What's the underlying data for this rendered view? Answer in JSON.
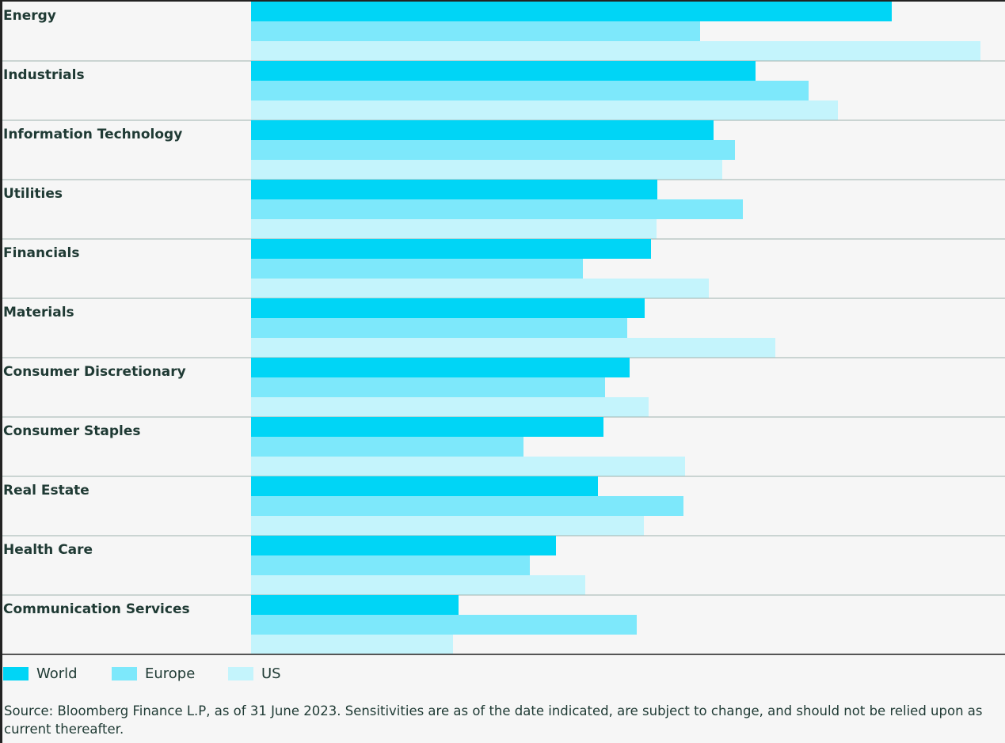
{
  "chart_data": {
    "type": "bar",
    "orientation": "horizontal",
    "categories": [
      "Energy",
      "Industrials",
      "Information Technology",
      "Utilities",
      "Financials",
      "Materials",
      "Consumer Discretionary",
      "Consumer Staples",
      "Real Estate",
      "Health Care",
      "Communication Services"
    ],
    "series": [
      {
        "name": "World",
        "color": "#00d5f6",
        "values": [
          809,
          637,
          584,
          513,
          505,
          497,
          478,
          445,
          438,
          385,
          262
        ]
      },
      {
        "name": "Europe",
        "color": "#7de8fb",
        "values": [
          567,
          704,
          611,
          621,
          419,
          475,
          447,
          344,
          546,
          352,
          487
        ]
      },
      {
        "name": "US",
        "color": "#c4f4fc",
        "values": [
          921,
          741,
          595,
          512,
          578,
          662,
          502,
          548,
          496,
          422,
          255
        ]
      }
    ],
    "xlim": [
      0,
      952
    ],
    "legend": "bottom-left",
    "source": "Source: Bloomberg Finance L.P, as of 31 June 2023. Sensitivities are as of the date indicated, are subject to change, and should not be relied upon as current thereafter."
  }
}
